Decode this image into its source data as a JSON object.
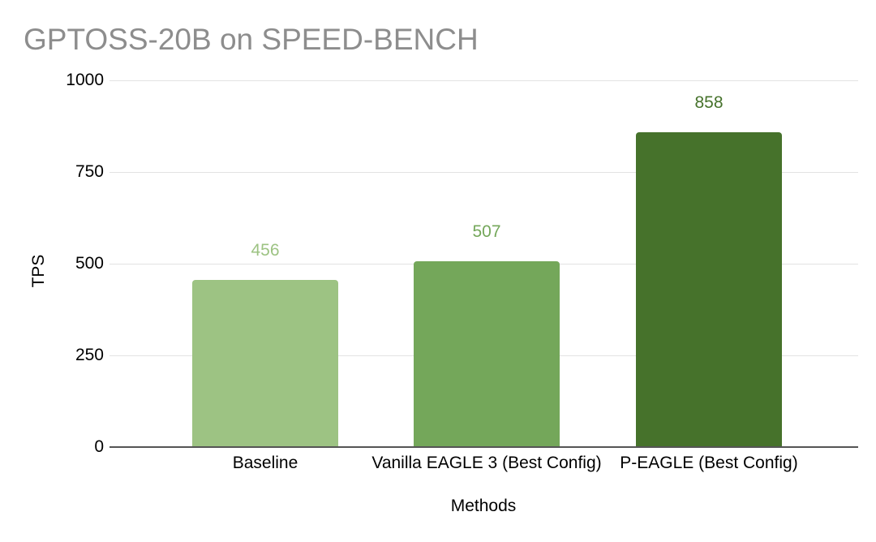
{
  "page": {
    "background": "#ffffff"
  },
  "chart_data": {
    "type": "bar",
    "title": "GPTOSS-20B on SPEED-BENCH",
    "categories": [
      "Baseline",
      "Vanilla EAGLE 3 (Best Config)",
      "P-EAGLE (Best Config)"
    ],
    "values": [
      456,
      507,
      858
    ],
    "xlabel": "Methods",
    "ylabel": "TPS",
    "ylim": [
      0,
      1000
    ],
    "yticks": [
      0,
      250,
      500,
      750,
      1000
    ],
    "grid": true,
    "legend": "none",
    "data_labels_shown": true,
    "bar_colors": [
      "#9dc383",
      "#74a75a",
      "#46722b"
    ],
    "value_label_colors": [
      "#9dc383",
      "#74a75a",
      "#46722b"
    ],
    "title_color": "#8d8d8d",
    "axis_text_color": "#000000",
    "gridline_color": "#e3e3e3",
    "axis_line_color": "#555555"
  }
}
